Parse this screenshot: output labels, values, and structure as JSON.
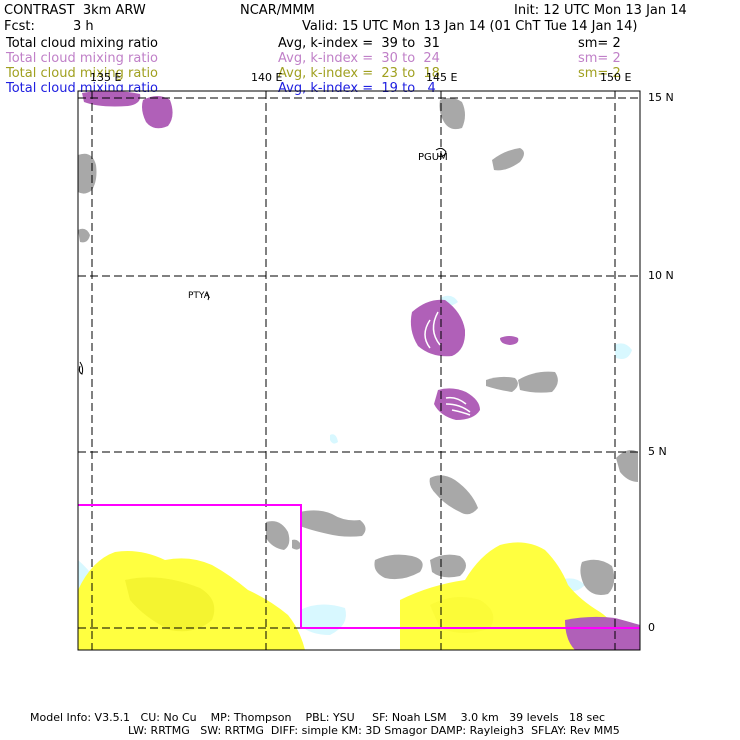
{
  "header": {
    "model_title": "CONTRAST  3km ARW",
    "center": "NCAR/MMM",
    "init": "Init: 12 UTC Mon 13 Jan 14",
    "fcst_label": "Fcst:",
    "fcst_value": "3 h",
    "valid": "Valid: 15 UTC Mon 13 Jan 14 (01 ChT Tue 14 Jan 14)"
  },
  "legend": [
    {
      "field": "Total cloud mixing ratio",
      "stat": "Avg, k-index =  39 to  31",
      "smooth": "sm= 2",
      "color": "#000000"
    },
    {
      "field": "Total cloud mixing ratio",
      "stat": "Avg, k-index =  30 to  24",
      "smooth": "sm= 2",
      "color": "#c080c8"
    },
    {
      "field": "Total cloud mixing ratio",
      "stat": "Avg, k-index =  23 to  18",
      "smooth": "sm= 2",
      "color": "#a0a020"
    },
    {
      "field": "Total cloud mixing ratio",
      "stat": "Avg, k-index =  19 to   4",
      "smooth": "",
      "color": "#2020e0"
    }
  ],
  "map": {
    "lon_labels": [
      "135 E",
      "140 E",
      "145 E",
      "150 E"
    ],
    "lat_labels": [
      "15 N",
      "10 N",
      "5 N",
      "0"
    ],
    "station_labels": [
      "PGUM",
      "PTYA"
    ],
    "fill_colors": {
      "gray": "#a8a8a8",
      "purple": "#b060b8",
      "yellow": "#ffff40",
      "cyan": "#d8f8ff",
      "box": "#ff00ff"
    }
  },
  "footer": {
    "line1": "Model Info: V3.5.1   CU: No Cu    MP: Thompson    PBL: YSU     SF: Noah LSM    3.0 km   39 levels   18 sec",
    "line2": "LW: RRTMG   SW: RRTMG  DIFF: simple KM: 3D Smagor DAMP: Rayleigh3  SFLAY: Rev MM5"
  }
}
